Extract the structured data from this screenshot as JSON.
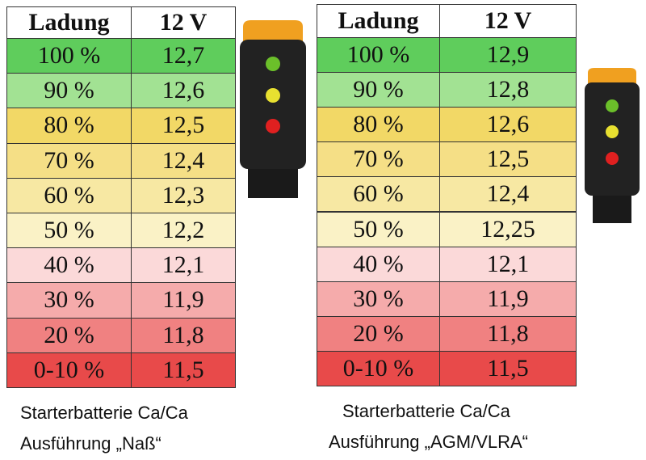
{
  "tables": [
    {
      "header": [
        "Ladung",
        "12 V"
      ],
      "rows": [
        [
          "100 %",
          "12,7"
        ],
        [
          "90 %",
          "12,6"
        ],
        [
          "80 %",
          "12,5"
        ],
        [
          "70 %",
          "12,4"
        ],
        [
          "60 %",
          "12,3"
        ],
        [
          "50 %",
          "12,2"
        ],
        [
          "40 %",
          "12,1"
        ],
        [
          "30 %",
          "11,9"
        ],
        [
          "20 %",
          "11,8"
        ],
        [
          "0-10 %",
          "11,5"
        ]
      ],
      "caption": [
        "Starterbatterie Ca/Ca",
        "Ausführung „Naß“"
      ]
    },
    {
      "header": [
        "Ladung",
        "12 V"
      ],
      "rows": [
        [
          "100 %",
          "12,9"
        ],
        [
          "90 %",
          "12,8"
        ],
        [
          "80 %",
          "12,6"
        ],
        [
          "70 %",
          "12,5"
        ],
        [
          "60 %",
          "12,4"
        ],
        [
          "50 %",
          "12,25"
        ],
        [
          "40 %",
          "12,1"
        ],
        [
          "30 %",
          "11,9"
        ],
        [
          "20 %",
          "11,8"
        ],
        [
          "0-10 %",
          "11,5"
        ]
      ],
      "caption": [
        "Starterbatterie Ca/Ca",
        "Ausführung „AGM/VLRA“"
      ]
    }
  ]
}
